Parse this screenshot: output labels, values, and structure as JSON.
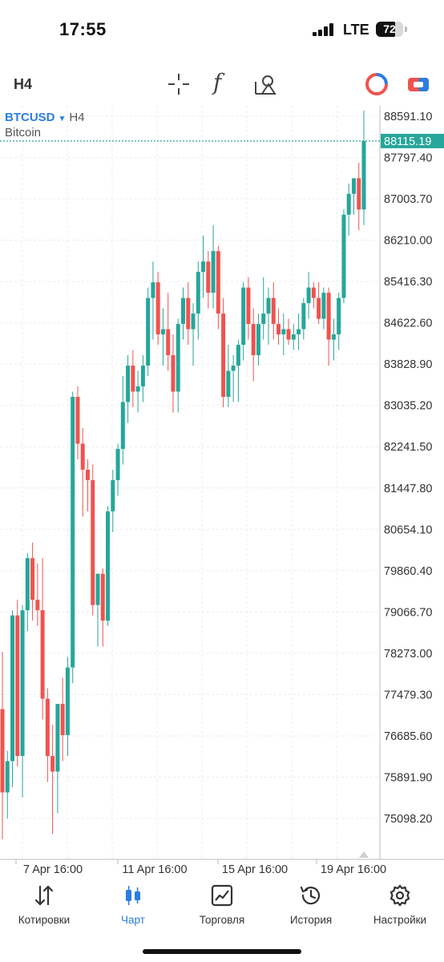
{
  "status_bar": {
    "time": "17:55",
    "network": "LTE",
    "battery": "72",
    "battery_level": 0.72
  },
  "toolbar": {
    "timeframe": "H4",
    "function_glyph": "f",
    "icons": [
      "crosshair-icon",
      "function-icon",
      "objects-icon",
      "indicators-icon",
      "trade-icon"
    ]
  },
  "chart": {
    "symbol": "BTCUSD",
    "timeframe": "H4",
    "description": "Bitcoin",
    "current_price": "88115.19",
    "price_axis": [
      "88591.10",
      "87797.40",
      "87003.70",
      "86210.00",
      "85416.30",
      "84622.60",
      "83828.90",
      "83035.20",
      "82241.50",
      "81447.80",
      "80654.10",
      "79860.40",
      "79066.70",
      "78273.00",
      "77479.30",
      "76685.60",
      "75891.90",
      "75098.20"
    ],
    "time_axis": [
      "7 Apr 16:00",
      "11 Apr 16:00",
      "15 Apr 16:00",
      "19 Apr 16:00"
    ],
    "colors": {
      "up": "#26a69a",
      "down": "#ef5350",
      "price_line": "#26a69a",
      "grid": "#ececec"
    }
  },
  "chart_data": {
    "type": "candlestick",
    "title": "BTCUSD, H4",
    "subtitle": "Bitcoin",
    "ylim": [
      74500,
      88900
    ],
    "x_ticks": [
      "7 Apr 16:00",
      "11 Apr 16:00",
      "15 Apr 16:00",
      "19 Apr 16:00"
    ],
    "candles": [
      [
        77200,
        78300,
        74700,
        75600
      ],
      [
        75600,
        76400,
        75100,
        76200
      ],
      [
        76200,
        79100,
        75700,
        79000
      ],
      [
        79000,
        79300,
        76100,
        76300
      ],
      [
        76300,
        79200,
        75500,
        79100
      ],
      [
        79100,
        80200,
        78700,
        80100
      ],
      [
        80100,
        80400,
        78900,
        79300
      ],
      [
        79300,
        80000,
        78800,
        79100
      ],
      [
        79100,
        80100,
        77000,
        77400
      ],
      [
        77400,
        77600,
        75800,
        76300
      ],
      [
        76300,
        76900,
        74800,
        76000
      ],
      [
        76000,
        77300,
        75200,
        77300
      ],
      [
        77300,
        77800,
        76200,
        76700
      ],
      [
        76700,
        78200,
        76300,
        78000
      ],
      [
        78000,
        83300,
        77700,
        83200
      ],
      [
        83200,
        83400,
        82000,
        82300
      ],
      [
        82300,
        82600,
        80900,
        81800
      ],
      [
        81800,
        82000,
        81000,
        81600
      ],
      [
        81600,
        81900,
        79000,
        79200
      ],
      [
        79200,
        79800,
        78400,
        79800
      ],
      [
        79800,
        79900,
        78400,
        78900
      ],
      [
        78900,
        81100,
        78800,
        81000
      ],
      [
        81000,
        81800,
        80600,
        81600
      ],
      [
        81600,
        82300,
        81300,
        82200
      ],
      [
        82200,
        83600,
        81900,
        83100
      ],
      [
        83100,
        84000,
        82700,
        83800
      ],
      [
        83800,
        84100,
        83000,
        83300
      ],
      [
        83300,
        83700,
        82900,
        83400
      ],
      [
        83400,
        84000,
        83100,
        83800
      ],
      [
        83800,
        85300,
        83600,
        85100
      ],
      [
        85100,
        85800,
        84300,
        85400
      ],
      [
        85400,
        85600,
        84200,
        84400
      ],
      [
        84400,
        84900,
        83800,
        84500
      ],
      [
        84500,
        85200,
        83700,
        84000
      ],
      [
        84000,
        84400,
        82900,
        83300
      ],
      [
        83300,
        84700,
        82900,
        84600
      ],
      [
        84600,
        85300,
        84300,
        85100
      ],
      [
        85100,
        85400,
        84200,
        84500
      ],
      [
        84500,
        85000,
        83800,
        84800
      ],
      [
        84800,
        85800,
        84300,
        85600
      ],
      [
        85600,
        86300,
        85100,
        85800
      ],
      [
        85800,
        86000,
        84900,
        85200
      ],
      [
        85200,
        86500,
        84900,
        86000
      ],
      [
        86000,
        86100,
        84500,
        84800
      ],
      [
        84800,
        85100,
        83000,
        83200
      ],
      [
        83200,
        84200,
        83000,
        83700
      ],
      [
        83700,
        84000,
        83100,
        83800
      ],
      [
        83800,
        84300,
        83100,
        84200
      ],
      [
        84200,
        85400,
        83900,
        85300
      ],
      [
        85300,
        85500,
        84300,
        84600
      ],
      [
        84600,
        84900,
        83500,
        84000
      ],
      [
        84000,
        84800,
        83800,
        84600
      ],
      [
        84600,
        85500,
        84300,
        84800
      ],
      [
        84800,
        85300,
        84200,
        85100
      ],
      [
        85100,
        85400,
        84300,
        84600
      ],
      [
        84600,
        84900,
        84200,
        84400
      ],
      [
        84400,
        84800,
        84000,
        84500
      ],
      [
        84500,
        84700,
        84200,
        84300
      ],
      [
        84300,
        84600,
        84100,
        84400
      ],
      [
        84400,
        84800,
        84100,
        84500
      ],
      [
        84500,
        85100,
        84300,
        85000
      ],
      [
        85000,
        85600,
        84700,
        85300
      ],
      [
        85300,
        85400,
        84900,
        85100
      ],
      [
        85100,
        85400,
        84600,
        84700
      ],
      [
        84700,
        85300,
        84500,
        85200
      ],
      [
        85200,
        85300,
        83800,
        84300
      ],
      [
        84300,
        84700,
        83900,
        84400
      ],
      [
        84400,
        85200,
        84100,
        85100
      ],
      [
        85100,
        86800,
        85000,
        86700
      ],
      [
        86700,
        87300,
        86300,
        87100
      ],
      [
        87100,
        87400,
        86700,
        87400
      ],
      [
        87400,
        87700,
        86400,
        86800
      ],
      [
        86800,
        88700,
        86500,
        88115.19
      ]
    ],
    "current_price": 88115.19
  },
  "nav": {
    "items": [
      {
        "label": "Котировки",
        "icon": "quotes-icon"
      },
      {
        "label": "Чарт",
        "icon": "chart-icon",
        "active": true
      },
      {
        "label": "Торговля",
        "icon": "trade-chart-icon"
      },
      {
        "label": "История",
        "icon": "history-icon"
      },
      {
        "label": "Настройки",
        "icon": "settings-icon"
      }
    ]
  }
}
